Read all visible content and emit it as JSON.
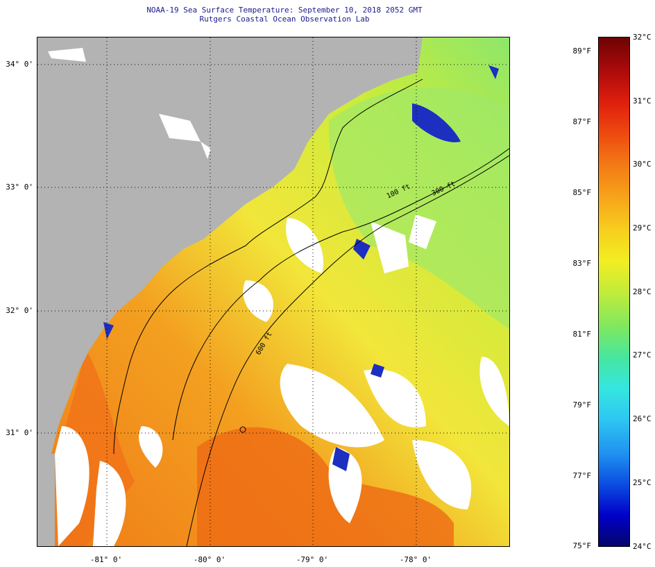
{
  "header": {
    "title_line1": "NOAA-19 Sea Surface Temperature:  September 10, 2018 2052 GMT",
    "title_line2": "Rutgers Coastal Ocean Observation Lab"
  },
  "map": {
    "lat_labels": [
      "34° 0'",
      "33° 0'",
      "32° 0'",
      "31° 0'"
    ],
    "lon_labels": [
      "-81° 0'",
      "-80° 0'",
      "-79° 0'",
      "-78° 0'"
    ],
    "isobath_labels": [
      "100 ft",
      "300 ft",
      "600 ft"
    ],
    "colors": {
      "land": "#b3b3b3",
      "cloud": "#ffffff",
      "warm": "#f07a18",
      "mid": "#f3e63a",
      "cool": "#8ee66a",
      "cold": "#1c2fc0"
    }
  },
  "colorbar": {
    "fahrenheit": [
      "89°F",
      "87°F",
      "85°F",
      "83°F",
      "81°F",
      "79°F",
      "77°F",
      "75°F"
    ],
    "celsius": [
      "32°C",
      "31°C",
      "30°C",
      "29°C",
      "28°C",
      "27°C",
      "26°C",
      "25°C",
      "24°C"
    ]
  }
}
